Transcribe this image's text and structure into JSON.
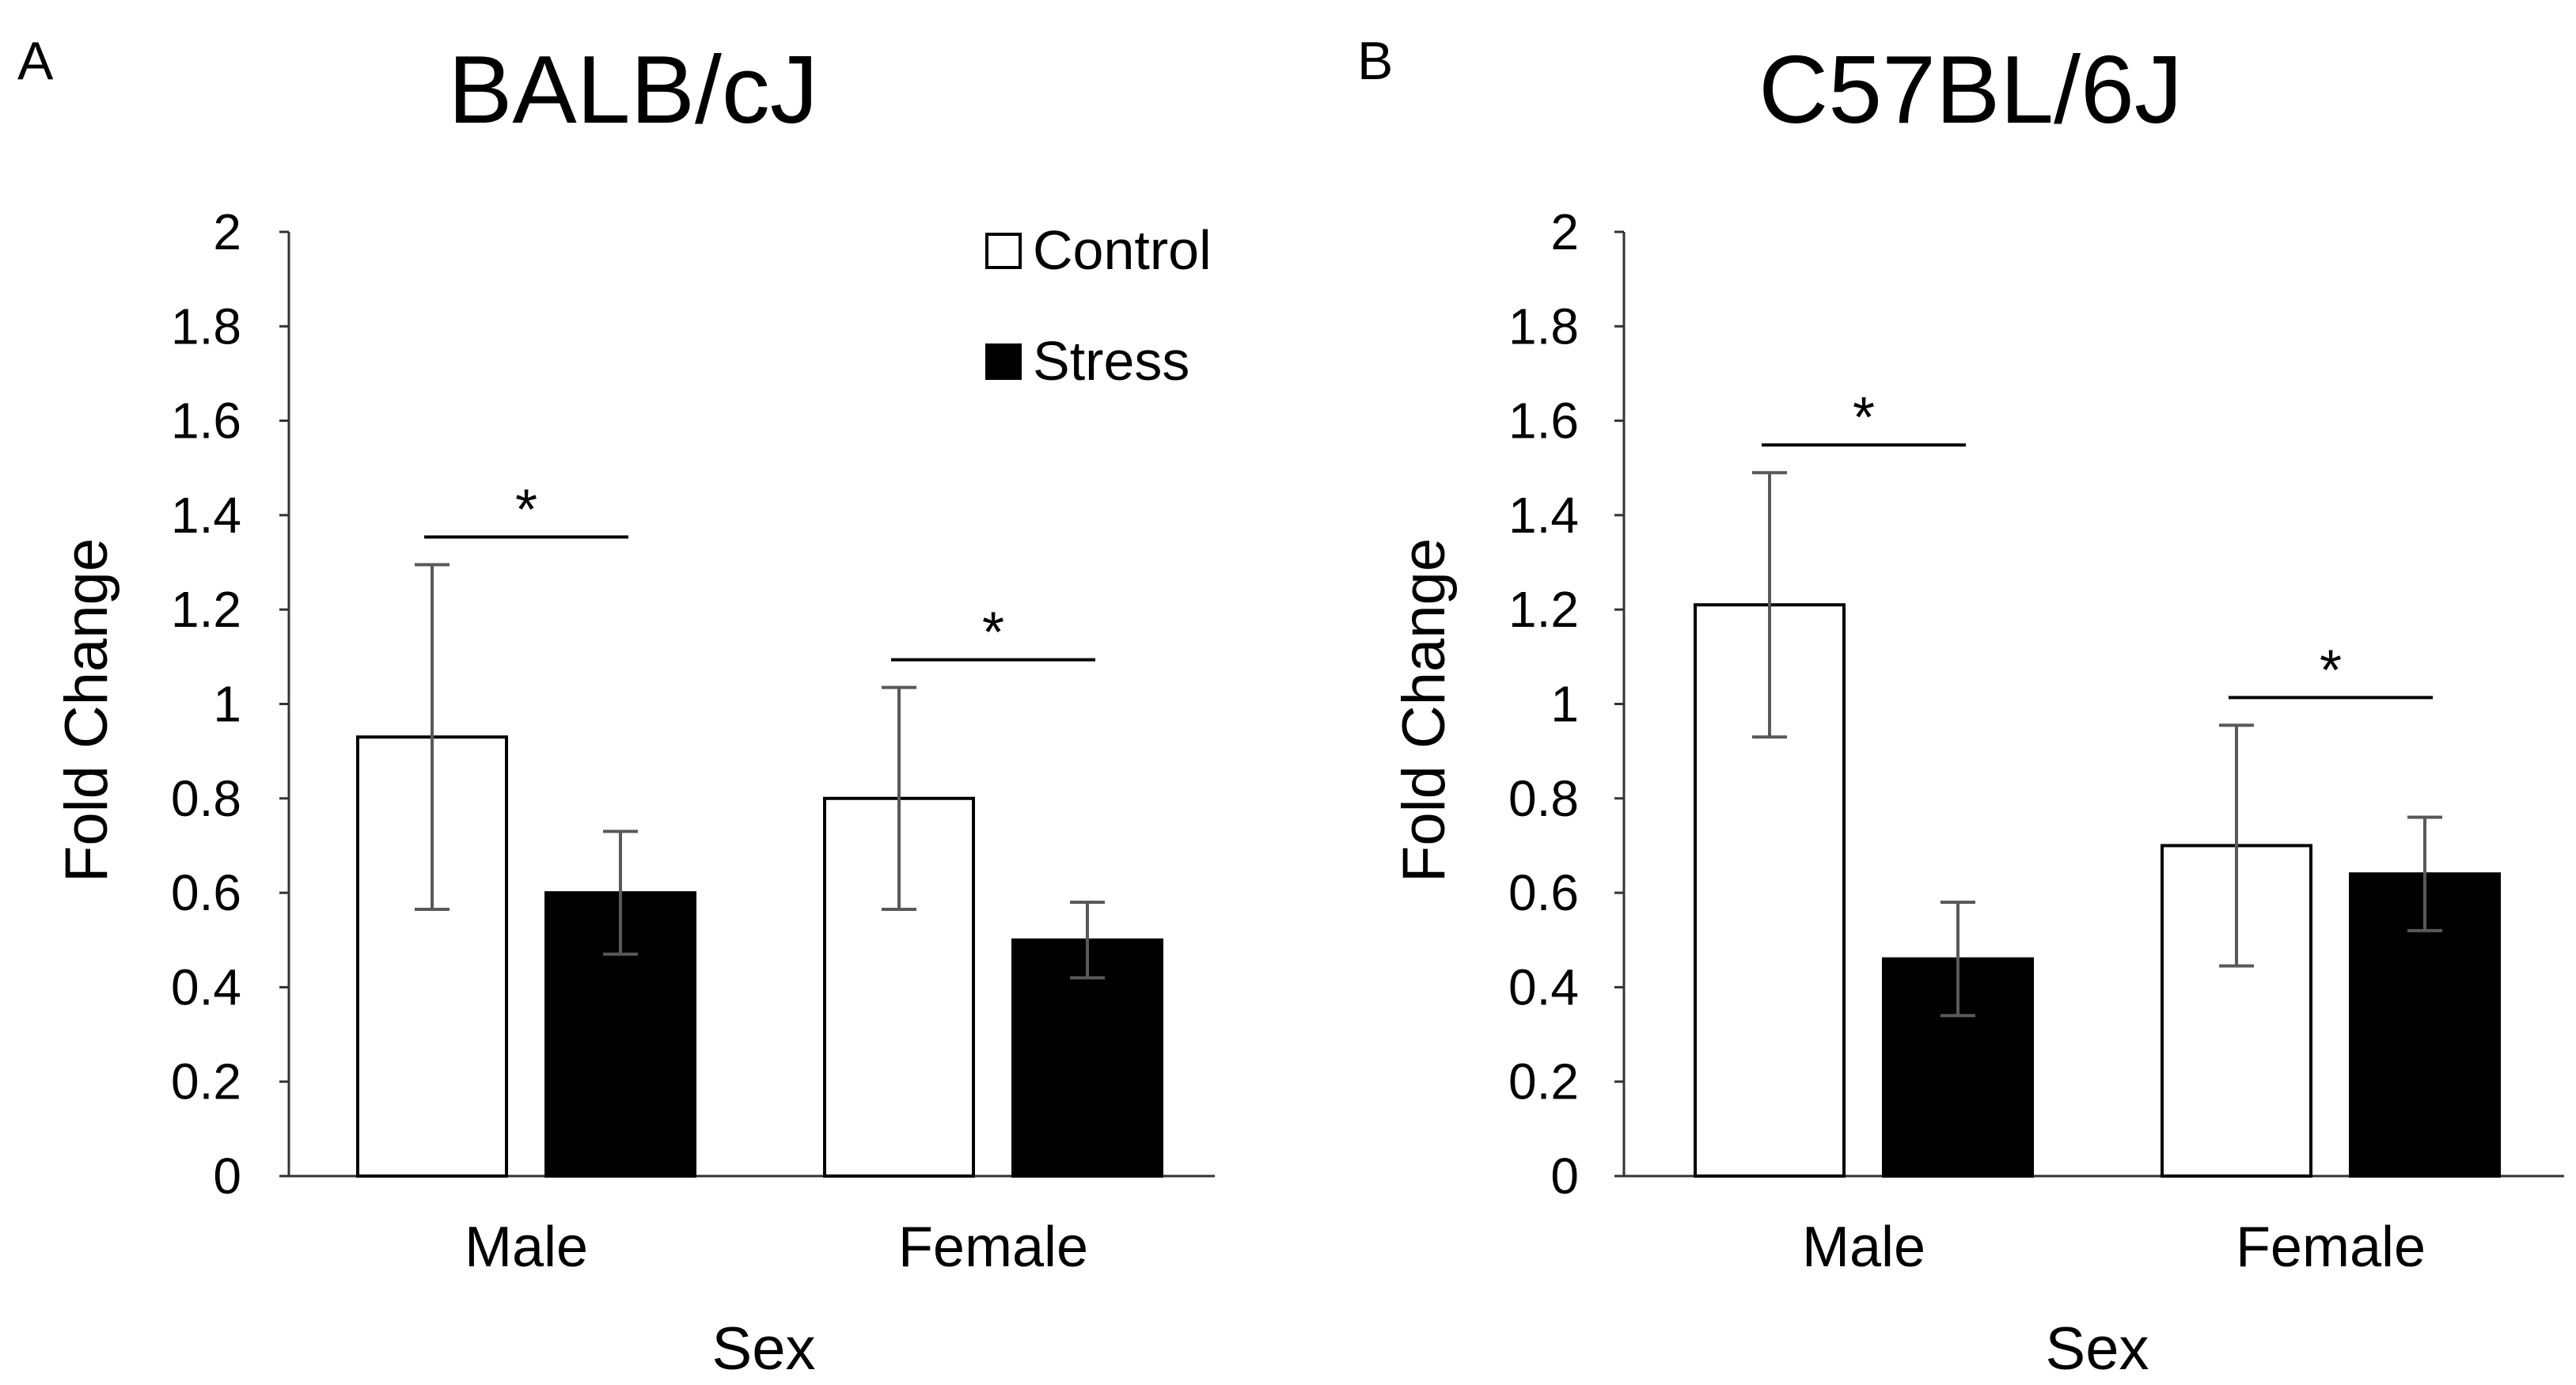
{
  "chart_data": [
    {
      "type": "bar",
      "panel_label": "A",
      "title": "BALB/cJ",
      "xlabel": "Sex",
      "ylabel": "Fold Change",
      "ylim": [
        0,
        2
      ],
      "yticks": [
        "0",
        "0.2",
        "0.4",
        "0.6",
        "0.8",
        "1",
        "1.2",
        "1.4",
        "1.6",
        "1.8",
        "2"
      ],
      "categories": [
        "Male",
        "Female"
      ],
      "series": [
        {
          "name": "Control",
          "color": "#ffffff",
          "values": [
            0.93,
            0.8
          ],
          "error": [
            0.365,
            0.235
          ]
        },
        {
          "name": "Stress",
          "color": "#000000",
          "values": [
            0.6,
            0.5
          ],
          "error": [
            0.13,
            0.08
          ]
        }
      ],
      "significance": [
        "*",
        "*"
      ],
      "legend": {
        "position": "top-right",
        "show": true
      },
      "grid": false
    },
    {
      "type": "bar",
      "panel_label": "B",
      "title": "C57BL/6J",
      "xlabel": "Sex",
      "ylabel": "Fold Change",
      "ylim": [
        0,
        2
      ],
      "yticks": [
        "0",
        "0.2",
        "0.4",
        "0.6",
        "0.8",
        "1",
        "1.2",
        "1.4",
        "1.6",
        "1.8",
        "2"
      ],
      "categories": [
        "Male",
        "Female"
      ],
      "series": [
        {
          "name": "Control",
          "color": "#ffffff",
          "values": [
            1.21,
            0.7
          ],
          "error": [
            0.28,
            0.255
          ]
        },
        {
          "name": "Stress",
          "color": "#000000",
          "values": [
            0.46,
            0.64
          ],
          "error": [
            0.12,
            0.12
          ]
        }
      ],
      "significance": [
        "*",
        "*"
      ],
      "legend": {
        "position": "none",
        "show": false
      },
      "grid": false
    }
  ],
  "colors": {
    "axis": "#333333",
    "error_bar": "#595959",
    "bar_outline": "#000000"
  }
}
